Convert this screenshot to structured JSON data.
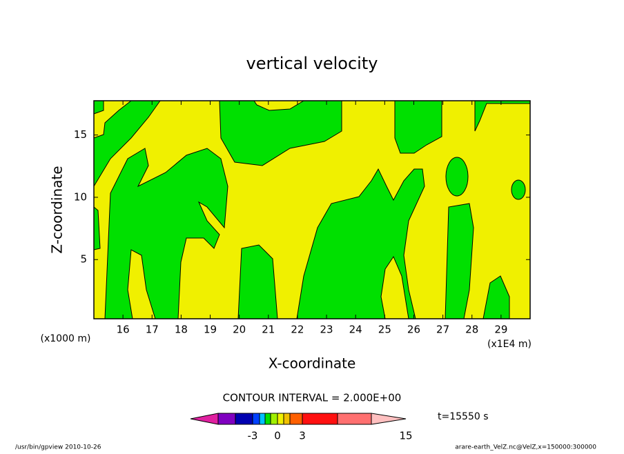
{
  "chart_data": {
    "type": "contour",
    "title": "vertical velocity",
    "x_label": "X-coordinate",
    "y_label": "Z-coordinate",
    "x_unit": "(x1E4 m)",
    "y_unit": "(x1000 m)",
    "xlim": [
      15,
      30
    ],
    "xticks": [
      16,
      17,
      18,
      19,
      20,
      21,
      22,
      23,
      24,
      25,
      26,
      27,
      28,
      29
    ],
    "ylim": [
      0.25,
      17.75
    ],
    "yticks": [
      5,
      10,
      15
    ],
    "contour_interval": "CONTOUR INTERVAL = 2.000E+00",
    "time": "t=15550 s",
    "colorbar": {
      "colors": [
        "#e020a0",
        "#8000c0",
        "#0000b0",
        "#0040ff",
        "#00c0ff",
        "#00e000",
        "#a0f000",
        "#f0f000",
        "#f0c000",
        "#ff6000",
        "#ff1010",
        "#ff7070",
        "#ffc0c0"
      ],
      "labels": [
        "-3",
        "0",
        "3",
        "15"
      ]
    },
    "footer_left": "/usr/bin/gpview   2010-10-26",
    "footer_right": "arare-earth_VelZ.nc@VelZ,x=150000:300000"
  }
}
